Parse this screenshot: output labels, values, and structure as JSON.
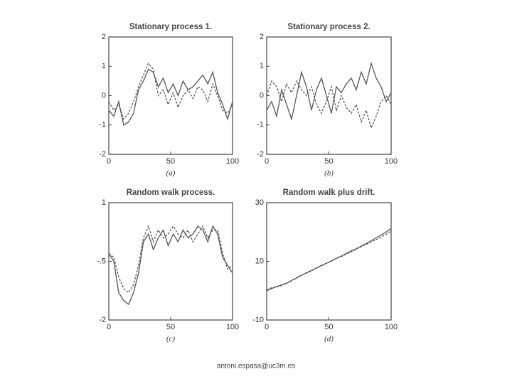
{
  "chart_data": [
    {
      "type": "line",
      "title": "Stationary process 1.",
      "caption": "(a)",
      "x": [
        0,
        4,
        8,
        12,
        16,
        20,
        24,
        28,
        32,
        36,
        40,
        44,
        48,
        52,
        56,
        60,
        64,
        68,
        72,
        76,
        80,
        84,
        88,
        92,
        96,
        100
      ],
      "series": [
        {
          "color": "#555555",
          "linestyle": "solid",
          "values": [
            -0.5,
            -0.7,
            -0.2,
            -1.0,
            -0.9,
            -0.6,
            0.2,
            0.5,
            0.9,
            0.8,
            0.3,
            0.6,
            0.1,
            0.4,
            0.0,
            0.5,
            0.2,
            0.3,
            0.5,
            0.7,
            0.4,
            0.8,
            0.1,
            -0.3,
            -0.8,
            -0.2
          ]
        },
        {
          "color": "#555555",
          "linestyle": "dashed",
          "values": [
            -0.2,
            -0.5,
            -0.3,
            -0.8,
            -0.6,
            -0.2,
            0.3,
            0.7,
            1.1,
            0.9,
            0.0,
            0.2,
            -0.3,
            0.1,
            -0.4,
            0.0,
            0.2,
            -0.1,
            0.3,
            0.2,
            -0.2,
            0.4,
            0.0,
            -0.5,
            -0.6,
            -0.3
          ]
        }
      ],
      "xlim": [
        0,
        100
      ],
      "ylim": [
        -2,
        2
      ],
      "xticks": [
        0,
        50,
        100
      ],
      "yticks": [
        -2,
        -1,
        0,
        1,
        2
      ]
    },
    {
      "type": "line",
      "title": "Stationary process 2.",
      "caption": "(b)",
      "x": [
        0,
        4,
        8,
        12,
        16,
        20,
        24,
        28,
        32,
        36,
        40,
        44,
        48,
        52,
        56,
        60,
        64,
        68,
        72,
        76,
        80,
        84,
        88,
        92,
        96,
        100
      ],
      "series": [
        {
          "color": "#555555",
          "linestyle": "solid",
          "values": [
            -0.5,
            -0.2,
            -0.7,
            0.2,
            -0.3,
            -0.8,
            0.0,
            0.8,
            0.3,
            -0.5,
            0.2,
            0.6,
            0.0,
            -0.6,
            0.3,
            0.1,
            0.4,
            0.6,
            0.2,
            0.8,
            0.4,
            1.1,
            0.6,
            0.3,
            -0.2,
            0.1
          ]
        },
        {
          "color": "#555555",
          "linestyle": "dashed",
          "values": [
            0.0,
            0.5,
            0.3,
            -0.2,
            0.4,
            0.1,
            0.5,
            0.2,
            0.0,
            0.3,
            -0.3,
            -0.6,
            -0.2,
            0.3,
            -0.5,
            0.0,
            -0.4,
            -0.6,
            -0.3,
            -0.9,
            -0.5,
            -1.1,
            -0.7,
            -0.2,
            0.0,
            -0.3
          ]
        }
      ],
      "xlim": [
        0,
        100
      ],
      "ylim": [
        -2,
        2
      ],
      "xticks": [
        0,
        50,
        100
      ],
      "yticks": [
        -2,
        -1,
        0,
        1,
        2
      ]
    },
    {
      "type": "line",
      "title": "Random walk process.",
      "caption": "(c)",
      "x": [
        0,
        4,
        8,
        12,
        16,
        20,
        24,
        28,
        32,
        36,
        40,
        44,
        48,
        52,
        56,
        60,
        64,
        68,
        72,
        76,
        80,
        84,
        88,
        92,
        96,
        100
      ],
      "series": [
        {
          "color": "#555555",
          "linestyle": "solid",
          "values": [
            -0.3,
            -0.5,
            -1.3,
            -1.5,
            -1.6,
            -1.3,
            -0.8,
            0.0,
            0.2,
            -0.2,
            0.1,
            0.3,
            -0.1,
            0.2,
            0.0,
            0.3,
            0.1,
            0.2,
            0.4,
            0.3,
            0.0,
            0.4,
            0.2,
            -0.4,
            -0.6,
            -0.8
          ]
        },
        {
          "color": "#555555",
          "linestyle": "dashed",
          "values": [
            -0.3,
            -0.4,
            -0.9,
            -1.2,
            -1.3,
            -1.1,
            -0.6,
            0.1,
            0.4,
            0.0,
            0.3,
            0.1,
            0.2,
            0.4,
            0.2,
            0.1,
            0.3,
            0.0,
            0.2,
            0.4,
            0.1,
            0.3,
            0.3,
            -0.3,
            -0.7,
            -0.6
          ]
        }
      ],
      "xlim": [
        0,
        100
      ],
      "ylim": [
        -2,
        1
      ],
      "xticks": [
        0,
        50,
        100
      ],
      "yticks": [
        -2,
        {
          "value": -0.5,
          "label": "-.5"
        },
        1
      ]
    },
    {
      "type": "line",
      "title": "Random walk plus drift.",
      "caption": "(d)",
      "x": [
        0,
        4,
        8,
        12,
        16,
        20,
        24,
        28,
        32,
        36,
        40,
        44,
        48,
        52,
        56,
        60,
        64,
        68,
        72,
        76,
        80,
        84,
        88,
        92,
        96,
        100
      ],
      "series": [
        {
          "color": "#555555",
          "linestyle": "solid",
          "values": [
            0,
            0.7,
            1.4,
            2.0,
            2.5,
            3.5,
            4.3,
            5.2,
            6.1,
            6.9,
            7.7,
            8.6,
            9.3,
            10.2,
            11.0,
            11.8,
            12.7,
            13.6,
            14.3,
            15.2,
            16.1,
            17.0,
            18.0,
            19.0,
            20.0,
            21.2
          ]
        },
        {
          "color": "#555555",
          "linestyle": "dashed",
          "values": [
            0.3,
            1.0,
            1.3,
            1.8,
            2.6,
            3.3,
            4.4,
            5.3,
            6.0,
            6.7,
            7.8,
            8.4,
            9.4,
            10.0,
            11.1,
            11.6,
            12.5,
            13.2,
            14.2,
            15.0,
            15.8,
            16.6,
            17.4,
            18.3,
            19.2,
            20.3
          ]
        }
      ],
      "xlim": [
        0,
        100
      ],
      "ylim": [
        -10,
        30
      ],
      "xticks": [
        0,
        50,
        100
      ],
      "yticks": [
        -10,
        10,
        30
      ]
    }
  ],
  "footer": "antoni.espasa@uc3m.es"
}
